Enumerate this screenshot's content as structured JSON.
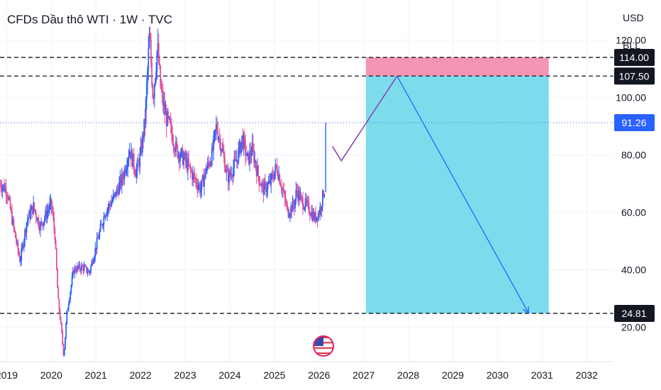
{
  "header": {
    "title": "CFDs Dầu thô WTI · 1W · TVC",
    "currency": "USD",
    "unit": "BLL"
  },
  "colors": {
    "up": "#2962ff",
    "down": "#e04f9a",
    "target_zone": "#6fd8ea",
    "stop_zone": "#f48fb1",
    "arrow": "#2962ff",
    "forecast_line": "#8e44ad",
    "tag_bg": "#131722",
    "price_tag_bg": "#2962ff"
  },
  "icons": {
    "flag": "us-flag-icon"
  },
  "chart_data": {
    "type": "candlestick",
    "title": "CFDs Dầu thô WTI · 1W · TVC",
    "x_range": [
      2018.85,
      2032.6
    ],
    "y_range": [
      8,
      134
    ],
    "x_ticks": [
      "2019",
      "2020",
      "2021",
      "2022",
      "2023",
      "2024",
      "2025",
      "2026",
      "2027",
      "2028",
      "2029",
      "2030",
      "2031",
      "2032"
    ],
    "y_ticks": [
      "20.00",
      "40.00",
      "60.00",
      "80.00",
      "100.00",
      "120.00"
    ],
    "price_path": [
      [
        2018.85,
        70
      ],
      [
        2019.0,
        68
      ],
      [
        2019.15,
        55
      ],
      [
        2019.3,
        43
      ],
      [
        2019.45,
        57
      ],
      [
        2019.6,
        62
      ],
      [
        2019.75,
        55
      ],
      [
        2019.9,
        60
      ],
      [
        2020.0,
        63
      ],
      [
        2020.08,
        52
      ],
      [
        2020.15,
        30
      ],
      [
        2020.22,
        20
      ],
      [
        2020.28,
        10
      ],
      [
        2020.35,
        25
      ],
      [
        2020.5,
        40
      ],
      [
        2020.7,
        41
      ],
      [
        2020.85,
        39
      ],
      [
        2021.0,
        48
      ],
      [
        2021.2,
        60
      ],
      [
        2021.4,
        65
      ],
      [
        2021.6,
        72
      ],
      [
        2021.75,
        82
      ],
      [
        2021.9,
        74
      ],
      [
        2022.0,
        80
      ],
      [
        2022.1,
        92
      ],
      [
        2022.2,
        122
      ],
      [
        2022.28,
        100
      ],
      [
        2022.38,
        118
      ],
      [
        2022.45,
        103
      ],
      [
        2022.55,
        94
      ],
      [
        2022.65,
        90
      ],
      [
        2022.8,
        82
      ],
      [
        2023.0,
        78
      ],
      [
        2023.2,
        72
      ],
      [
        2023.35,
        68
      ],
      [
        2023.45,
        74
      ],
      [
        2023.6,
        80
      ],
      [
        2023.7,
        90
      ],
      [
        2023.8,
        84
      ],
      [
        2023.95,
        72
      ],
      [
        2024.0,
        73
      ],
      [
        2024.15,
        78
      ],
      [
        2024.28,
        86
      ],
      [
        2024.4,
        78
      ],
      [
        2024.5,
        82
      ],
      [
        2024.65,
        72
      ],
      [
        2024.75,
        68
      ],
      [
        2024.9,
        70
      ],
      [
        2025.05,
        76
      ],
      [
        2025.15,
        70
      ],
      [
        2025.3,
        60
      ],
      [
        2025.45,
        63
      ],
      [
        2025.5,
        68
      ],
      [
        2025.6,
        64
      ],
      [
        2025.75,
        62
      ],
      [
        2025.9,
        58
      ],
      [
        2026.0,
        60
      ],
      [
        2026.05,
        63
      ],
      [
        2026.1,
        67
      ],
      [
        2026.12,
        68
      ]
    ],
    "spike": {
      "x": 2026.15,
      "low": 67,
      "high": 91.26
    },
    "current_price": "91.26",
    "horizontal_levels": [
      "114.00",
      "107.50",
      "24.81"
    ],
    "levels": {
      "stop": 114.0,
      "entry": 107.5,
      "target": 24.81,
      "current": 91.26
    },
    "position": {
      "type": "short",
      "x_start": 2027.05,
      "x_end": 2031.15
    },
    "forecast_path": [
      [
        2026.3,
        83
      ],
      [
        2026.5,
        78
      ],
      [
        2027.75,
        107.5
      ],
      [
        2030.7,
        24.81
      ]
    ]
  }
}
